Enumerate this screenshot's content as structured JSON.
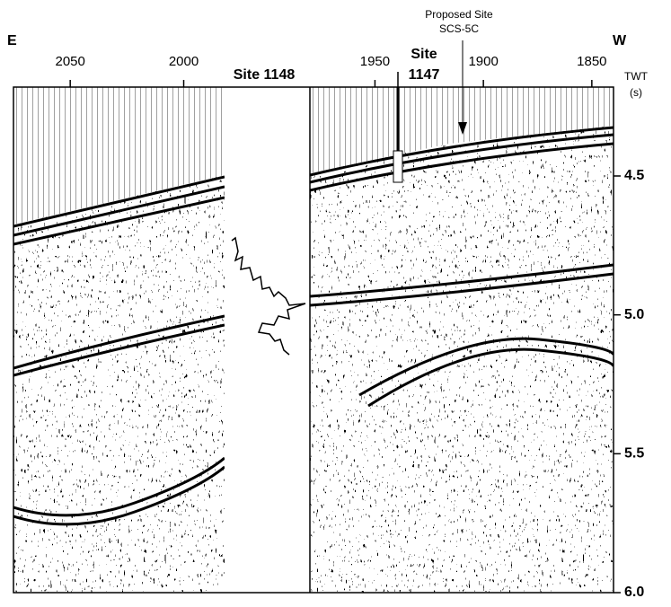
{
  "chart_data": {
    "type": "seismic",
    "labels": {
      "east": "E",
      "west": "W",
      "site_1148": "Site 1148",
      "site_1147": [
        "Site",
        "1147"
      ],
      "proposed_site": [
        "Proposed Site",
        "SCS-5C"
      ],
      "y_label": [
        "TWT",
        "(s)"
      ]
    },
    "panels": [
      {
        "xlim": [
          2075,
          1982
        ],
        "xticks": [
          2050,
          2000
        ]
      },
      {
        "xlim": [
          1980,
          1840
        ],
        "xticks": [
          1950,
          1900,
          1850
        ]
      }
    ],
    "ylim": [
      4.18,
      6.0
    ],
    "yticks": [
      4.5,
      {
        "value": 5,
        "label": "5.0"
      },
      5.5,
      {
        "value": 6,
        "label": "6.0"
      }
    ]
  }
}
